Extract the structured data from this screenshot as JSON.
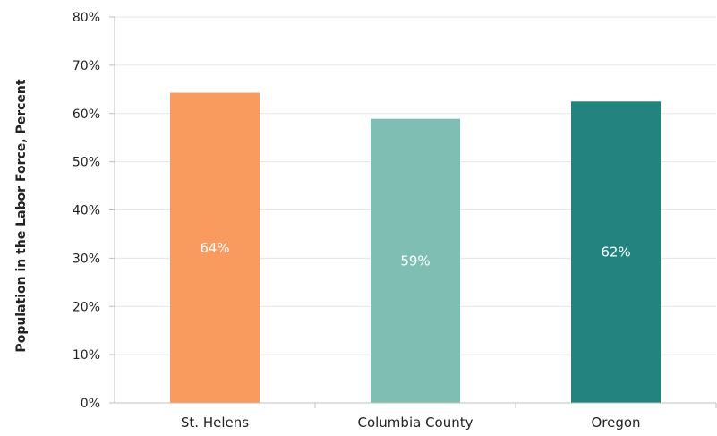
{
  "chart_data": {
    "type": "bar",
    "title": "",
    "xlabel": "",
    "ylabel": "Population in the Labor Force, Percent",
    "categories": [
      "St. Helens",
      "Columbia County",
      "Oregon"
    ],
    "values": [
      64.3,
      58.9,
      62.5
    ],
    "data_labels": [
      "64%",
      "59%",
      "62%"
    ],
    "colors": [
      "#f99a5f",
      "#7fbfb3",
      "#22837f"
    ],
    "ylim": [
      0,
      80
    ],
    "yticks": [
      0,
      10,
      20,
      30,
      40,
      50,
      60,
      70,
      80
    ],
    "ytick_labels": [
      "0%",
      "10%",
      "20%",
      "30%",
      "40%",
      "50%",
      "60%",
      "70%",
      "80%"
    ],
    "grid": true,
    "legend": "none"
  }
}
